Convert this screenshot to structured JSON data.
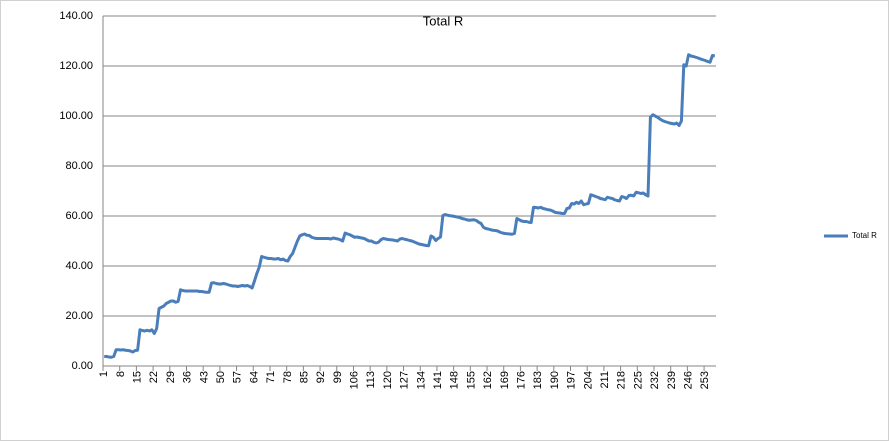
{
  "chart_data": {
    "type": "line",
    "title": "Total R",
    "categories": [
      "1",
      null,
      null,
      null,
      null,
      null,
      null,
      "8",
      null,
      null,
      null,
      null,
      null,
      null,
      "15",
      null,
      null,
      null,
      null,
      null,
      null,
      "22",
      null,
      null,
      null,
      null,
      null,
      null,
      "29",
      null,
      null,
      null,
      null,
      null,
      null,
      "36",
      null,
      null,
      null,
      null,
      null,
      null,
      "43",
      null,
      null,
      null,
      null,
      null,
      null,
      "50",
      null,
      null,
      null,
      null,
      null,
      null,
      "57",
      null,
      null,
      null,
      null,
      null,
      null,
      "64",
      null,
      null,
      null,
      null,
      null,
      null,
      "71",
      null,
      null,
      null,
      null,
      null,
      null,
      "78",
      null,
      null,
      null,
      null,
      null,
      null,
      "85",
      null,
      null,
      null,
      null,
      null,
      null,
      "92",
      null,
      null,
      null,
      null,
      null,
      null,
      "99",
      null,
      null,
      null,
      null,
      null,
      null,
      "106",
      null,
      null,
      null,
      null,
      null,
      null,
      "113",
      null,
      null,
      null,
      null,
      null,
      null,
      "120",
      null,
      null,
      null,
      null,
      null,
      null,
      "127",
      null,
      null,
      null,
      null,
      null,
      null,
      "134",
      null,
      null,
      null,
      null,
      null,
      null,
      "141",
      null,
      null,
      null,
      null,
      null,
      null,
      "148",
      null,
      null,
      null,
      null,
      null,
      null,
      "155",
      null,
      null,
      null,
      null,
      null,
      null,
      "162",
      null,
      null,
      null,
      null,
      null,
      null,
      "169",
      null,
      null,
      null,
      null,
      null,
      null,
      "176",
      null,
      null,
      null,
      null,
      null,
      null,
      "183",
      null,
      null,
      null,
      null,
      null,
      null,
      "190",
      null,
      null,
      null,
      null,
      null,
      null,
      "197",
      null,
      null,
      null,
      null,
      null,
      null,
      "204",
      null,
      null,
      null,
      null,
      null,
      null,
      "211",
      null,
      null,
      null,
      null,
      null,
      null,
      "218",
      null,
      null,
      null,
      null,
      null,
      null,
      "225",
      null,
      null,
      null,
      null,
      null,
      null,
      "232",
      null,
      null,
      null,
      null,
      null,
      null,
      "239",
      null,
      null,
      null,
      null,
      null,
      null,
      "246",
      null,
      null,
      null,
      null,
      null,
      null,
      "253",
      null,
      null,
      null,
      null
    ],
    "series": [
      {
        "name": "Total R",
        "color": "#4a7ebb",
        "values": [
          3.8,
          3.8,
          3.6,
          3.5,
          3.8,
          6.5,
          6.5,
          6.4,
          6.5,
          6.3,
          6.2,
          6,
          5.6,
          6.2,
          6.3,
          14.5,
          14.2,
          14,
          14.3,
          14,
          14.5,
          13,
          15,
          23,
          23.5,
          24,
          25,
          25.5,
          26,
          26,
          25.5,
          25.8,
          30.5,
          30.2,
          30,
          30,
          30,
          30,
          30,
          30,
          29.8,
          29.8,
          29.6,
          29.5,
          29.5,
          33.2,
          33.3,
          33,
          32.8,
          32.8,
          33,
          32.8,
          32.5,
          32.2,
          32,
          32,
          31.8,
          32,
          32.2,
          32,
          32.2,
          31.8,
          31.2,
          34,
          37,
          39.5,
          43.8,
          43.5,
          43.2,
          43,
          43,
          42.8,
          42.8,
          43,
          42.5,
          42.8,
          42.2,
          42,
          43.8,
          45,
          47.5,
          50,
          52,
          52.5,
          52.8,
          52.3,
          52.2,
          51.5,
          51.2,
          51,
          51,
          51,
          51,
          51,
          51,
          50.8,
          51.2,
          51,
          50.8,
          50.5,
          50,
          53.2,
          52.8,
          52.5,
          52,
          51.5,
          51.6,
          51.4,
          51.2,
          51,
          50.5,
          50,
          50,
          49.5,
          49.2,
          49.5,
          50.5,
          51,
          50.8,
          50.6,
          50.5,
          50.4,
          50.2,
          50,
          50.8,
          51,
          50.7,
          50.5,
          50.2,
          50,
          49.6,
          49.2,
          48.8,
          48.6,
          48.4,
          48.2,
          48.1,
          52,
          51.5,
          50.2,
          51,
          51.6,
          60.2,
          60.6,
          60.3,
          60.1,
          60,
          59.8,
          59.6,
          59.4,
          59,
          58.8,
          58.5,
          58.3,
          58.4,
          58.5,
          58.2,
          57.5,
          57,
          55.5,
          55,
          54.8,
          54.5,
          54.3,
          54.2,
          54,
          53.5,
          53.2,
          53,
          52.9,
          52.8,
          52.7,
          53,
          59,
          58.5,
          58,
          57.8,
          57.8,
          57.5,
          57.4,
          63.5,
          63.4,
          63.2,
          63.5,
          63,
          62.8,
          62.5,
          62.4,
          62,
          61.5,
          61.3,
          61.2,
          61,
          61,
          63,
          63.2,
          65,
          64.8,
          65.5,
          65,
          66,
          64.5,
          64.8,
          65,
          68.5,
          68.2,
          67.8,
          67.5,
          67,
          66.8,
          66.5,
          67.5,
          67.2,
          67,
          66.5,
          66.2,
          66,
          67.8,
          67.5,
          67,
          68.2,
          68.3,
          68,
          69.5,
          69.3,
          69,
          69.2,
          68.5,
          68,
          99.5,
          100.5,
          100,
          99.5,
          98.8,
          98.2,
          97.8,
          97.5,
          97.2,
          97,
          96.8,
          97.2,
          96.2,
          98,
          120.5,
          120,
          124.5,
          124,
          123.8,
          123.5,
          123.2,
          122.8,
          122.5,
          122.2,
          121.8,
          121.5,
          124.2,
          124
        ]
      }
    ],
    "ylim": [
      0,
      140
    ],
    "yticks": [
      {
        "value": 0,
        "label": "0.00"
      },
      {
        "value": 20,
        "label": "20.00"
      },
      {
        "value": 40,
        "label": "40.00"
      },
      {
        "value": 60,
        "label": "60.00"
      },
      {
        "value": 80,
        "label": "80.00"
      },
      {
        "value": 100,
        "label": "100.00"
      },
      {
        "value": 120,
        "label": "120.00"
      },
      {
        "value": 140,
        "label": "140.00"
      }
    ],
    "grid": true,
    "legend": "right"
  }
}
